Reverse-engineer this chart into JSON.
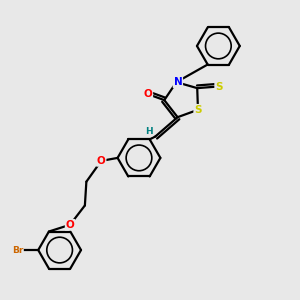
{
  "background_color": "#e8e8e8",
  "line_color": "#000000",
  "bond_width": 1.6,
  "figsize": [
    3.0,
    3.0
  ],
  "dpi": 100,
  "atom_colors": {
    "O": "#ff0000",
    "N": "#0000ff",
    "S": "#cccc00",
    "Br": "#cc6600",
    "H": "#008080",
    "C": "#000000"
  },
  "font_size": 7.5,
  "font_size_small": 6.5
}
